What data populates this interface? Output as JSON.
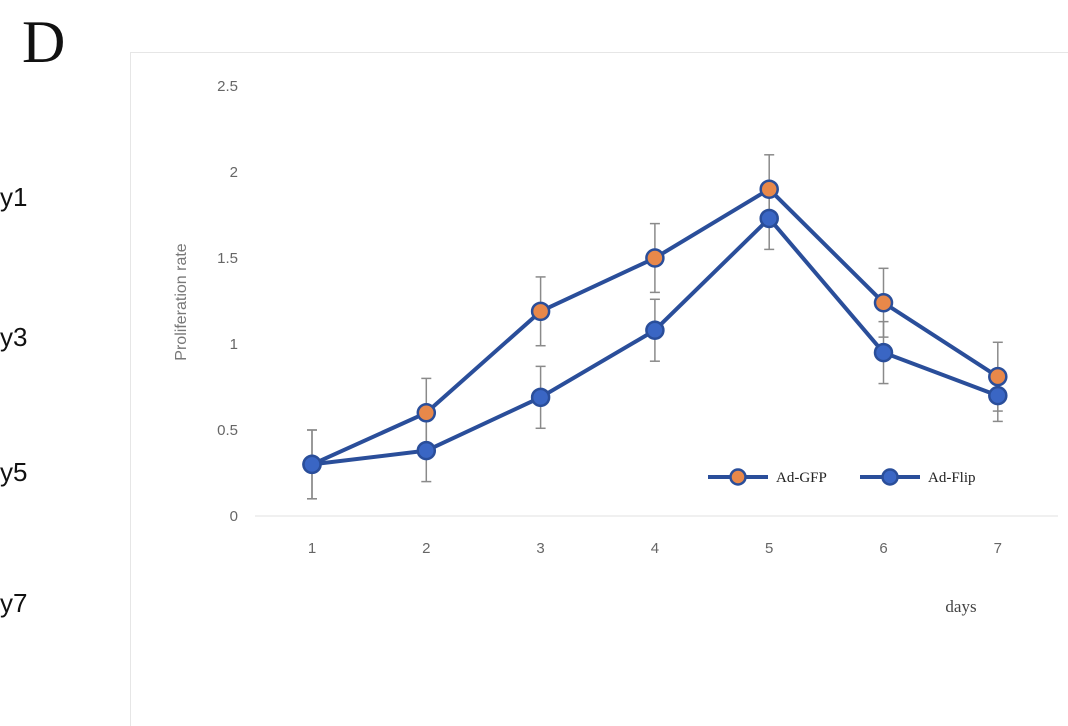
{
  "panel_letter": "D",
  "side_labels": [
    "y1",
    "y3",
    "y5",
    "y7"
  ],
  "colors": {
    "line": "#2a4e9a",
    "ad_gfp_marker": "#e8884a",
    "ad_flip_marker": "#3a66c4",
    "error_bar": "#8a8a8a",
    "axis": "#e0e0e0"
  },
  "chart_data": {
    "type": "line",
    "title": "",
    "xlabel": "days",
    "ylabel": "Proliferation rate",
    "categories": [
      "1",
      "2",
      "3",
      "4",
      "5",
      "6",
      "7"
    ],
    "x": [
      1,
      2,
      3,
      4,
      5,
      6,
      7
    ],
    "ylim": [
      0,
      2.5
    ],
    "yticks": [
      "0",
      "0.5",
      "1",
      "1.5",
      "2",
      "2.5"
    ],
    "ytick_values": [
      0,
      0.5,
      1,
      1.5,
      2,
      2.5
    ],
    "grid": false,
    "legend_position": "bottom-right",
    "series": [
      {
        "name": "Ad-GFP",
        "values": [
          0.3,
          0.6,
          1.19,
          1.5,
          1.9,
          1.24,
          0.81
        ],
        "errors": [
          0.2,
          0.2,
          0.2,
          0.2,
          0.2,
          0.2,
          0.2
        ]
      },
      {
        "name": "Ad-Flip",
        "values": [
          0.3,
          0.38,
          0.69,
          1.08,
          1.73,
          0.95,
          0.7
        ],
        "errors": [
          0.2,
          0.18,
          0.18,
          0.18,
          0.18,
          0.18,
          0.15
        ]
      }
    ]
  }
}
